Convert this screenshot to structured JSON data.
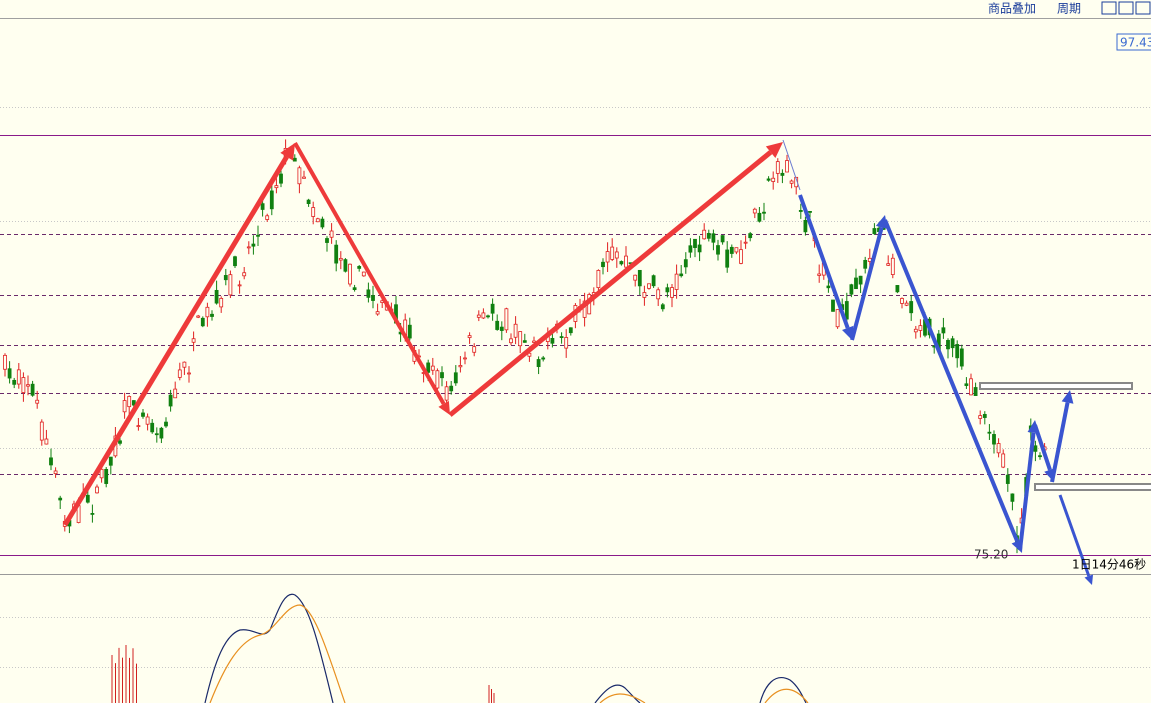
{
  "toolbar": {
    "overlay": "商品叠加",
    "period": "周期"
  },
  "price_label": "97.43",
  "low_label": "75.20",
  "countdown": "1日14分46秒"
}
